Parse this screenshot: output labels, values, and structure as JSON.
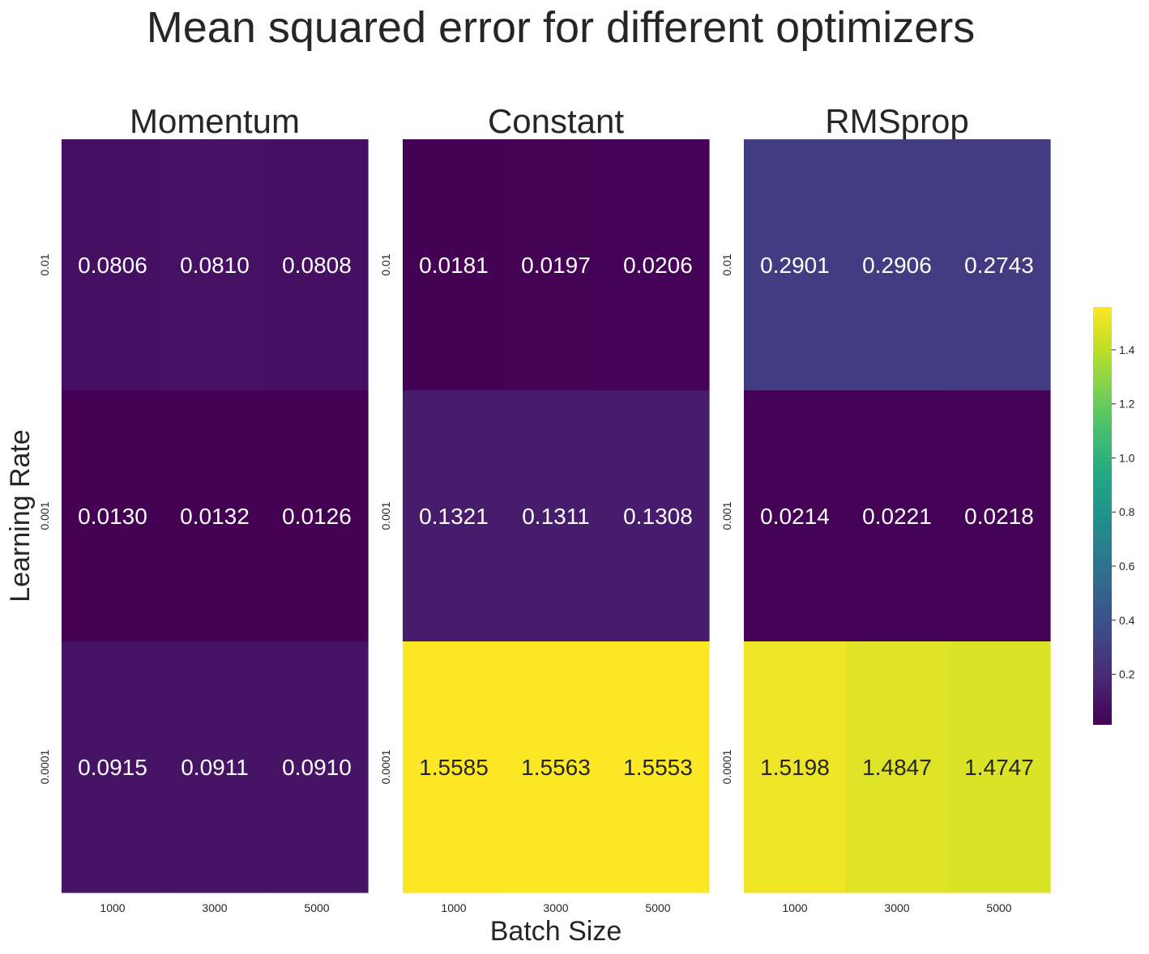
{
  "chart_data": {
    "type": "heatmap",
    "title": "Mean squared error for different optimizers",
    "xlabel": "Batch Size",
    "ylabel": "Learning Rate",
    "x_categories": [
      "1000",
      "3000",
      "5000"
    ],
    "y_categories": [
      "0.01",
      "0.001",
      "0.0001"
    ],
    "colormap": "viridis",
    "colorbar": {
      "min": 0.013,
      "max": 1.5585,
      "ticks": [
        0.2,
        0.4,
        0.6,
        0.8,
        1.0,
        1.2,
        1.4
      ],
      "tick_labels": [
        "0.2",
        "0.4",
        "0.6",
        "0.8",
        "1.0",
        "1.2",
        "1.4"
      ]
    },
    "panels": [
      {
        "name": "Momentum",
        "values": [
          [
            0.0806,
            0.081,
            0.0808
          ],
          [
            0.013,
            0.0132,
            0.0126
          ],
          [
            0.0915,
            0.0911,
            0.091
          ]
        ],
        "labels": [
          [
            "0.0806",
            "0.0810",
            "0.0808"
          ],
          [
            "0.0130",
            "0.0132",
            "0.0126"
          ],
          [
            "0.0915",
            "0.0911",
            "0.0910"
          ]
        ]
      },
      {
        "name": "Constant",
        "values": [
          [
            0.0181,
            0.0197,
            0.0206
          ],
          [
            0.1321,
            0.1311,
            0.1308
          ],
          [
            1.5585,
            1.5563,
            1.5553
          ]
        ],
        "labels": [
          [
            "0.0181",
            "0.0197",
            "0.0206"
          ],
          [
            "0.1321",
            "0.1311",
            "0.1308"
          ],
          [
            "1.5585",
            "1.5563",
            "1.5553"
          ]
        ]
      },
      {
        "name": "RMSprop",
        "values": [
          [
            0.2901,
            0.2906,
            0.2743
          ],
          [
            0.0214,
            0.0221,
            0.0218
          ],
          [
            1.5198,
            1.4847,
            1.4747
          ]
        ],
        "labels": [
          [
            "0.2901",
            "0.2906",
            "0.2743"
          ],
          [
            "0.0214",
            "0.0221",
            "0.0218"
          ],
          [
            "1.5198",
            "1.4847",
            "1.4747"
          ]
        ]
      }
    ]
  }
}
